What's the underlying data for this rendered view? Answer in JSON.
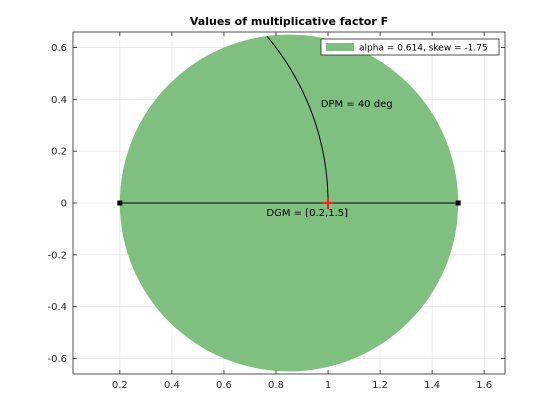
{
  "chart_data": {
    "type": "scatter",
    "title": "Values of multiplicative factor F",
    "xlabel": "",
    "ylabel": "",
    "xlim": [
      0.02,
      1.68
    ],
    "ylim": [
      -0.66,
      0.66
    ],
    "xticks": [
      "0.2",
      "0.4",
      "0.6",
      "0.8",
      "1",
      "1.2",
      "1.4",
      "1.6"
    ],
    "yticks": [
      "0.6",
      "0.4",
      "0.2",
      "0",
      "-0.2",
      "-0.4",
      "-0.6"
    ],
    "grid": true,
    "legend_position": "top-right",
    "region": {
      "name": "alpha = 0.614, skew = -1.75",
      "shape": "circle",
      "center": [
        0.85,
        0.0
      ],
      "radius": 0.65,
      "color": "#7fbf7f"
    },
    "dgm_segment": {
      "x": [
        0.2,
        1.5
      ],
      "y": [
        0.0,
        0.0
      ],
      "color": "#000000"
    },
    "dpm_arc": {
      "center": [
        0.0,
        0.0
      ],
      "radius": 1.0,
      "angle_range_deg": [
        0,
        40
      ],
      "color": "#000000"
    },
    "marker": {
      "x": 1.0,
      "y": 0.0,
      "color": "#ff0000"
    },
    "annotations": [
      {
        "text": "DPM = 40 deg",
        "x": 1.11,
        "y": 0.37
      },
      {
        "text": "DGM = [0.2,1.5]",
        "x": 0.92,
        "y": -0.05
      }
    ]
  }
}
